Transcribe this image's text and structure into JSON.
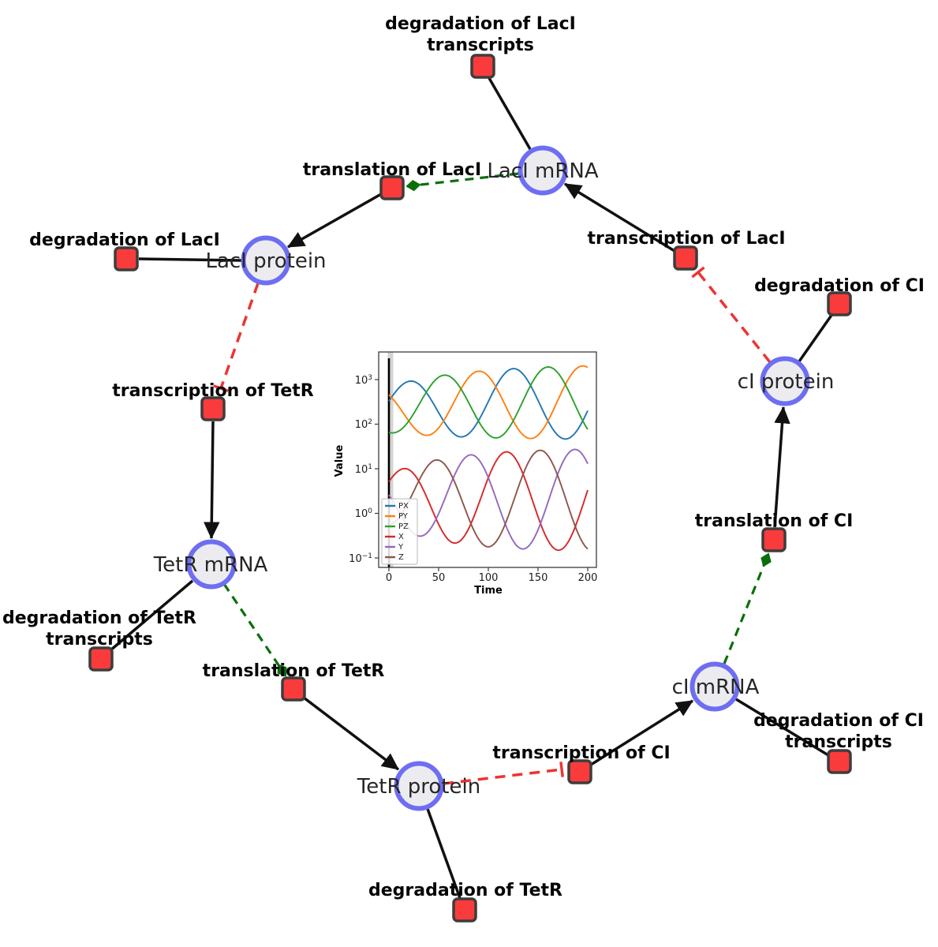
{
  "diagram": {
    "description": "Repressilator gene regulatory network: species (circles) and reactions (squares)",
    "style": {
      "species_fill": "#ececf0",
      "species_border": "#6e6ef2",
      "reaction_fill": "#fa3b3b",
      "reaction_border": "#3d3d3d",
      "edge_color": "#111111",
      "modifier_edge_color": "#0a6e0a",
      "inhibition_edge_color": "#ee3333"
    },
    "species": [
      {
        "id": "laci-mrna",
        "label": "LacI mRNA"
      },
      {
        "id": "laci-protein",
        "label": "LacI protein"
      },
      {
        "id": "tetr-mrna",
        "label": "TetR mRNA"
      },
      {
        "id": "tetr-protein",
        "label": "TetR protein"
      },
      {
        "id": "ci-mrna",
        "label": "cI mRNA"
      },
      {
        "id": "ci-protein",
        "label": "cI protein"
      }
    ],
    "reactions": [
      {
        "id": "deg-laci-transcripts",
        "label": "degradation of LacI",
        "label2": "transcripts"
      },
      {
        "id": "translation-laci",
        "label": "translation of LacI"
      },
      {
        "id": "deg-laci",
        "label": "degradation of LacI"
      },
      {
        "id": "transcription-tetr",
        "label": "transcription of TetR"
      },
      {
        "id": "deg-tetr-transcripts",
        "label": "degradation of TetR",
        "label2": "transcripts"
      },
      {
        "id": "translation-tetr",
        "label": "translation of TetR"
      },
      {
        "id": "deg-tetr",
        "label": "degradation of TetR"
      },
      {
        "id": "transcription-ci",
        "label": "transcription of CI"
      },
      {
        "id": "deg-ci-transcripts",
        "label": "degradation of CI",
        "label2": "transcripts"
      },
      {
        "id": "translation-ci",
        "label": "translation of CI"
      },
      {
        "id": "deg-ci",
        "label": "degradation of CI"
      },
      {
        "id": "transcription-laci",
        "label": "transcription of LacI"
      }
    ]
  },
  "chart_data": {
    "type": "line",
    "title": "",
    "xlabel": "Time",
    "ylabel": "Value",
    "x_axis": {
      "min": -10,
      "max": 208,
      "ticks": [
        0,
        50,
        100,
        150,
        200
      ]
    },
    "y_axis": {
      "scale": "log",
      "min": 0.07,
      "max": 3900,
      "ticks": [
        {
          "base": "10",
          "exp": "3"
        },
        {
          "base": "10",
          "exp": "2"
        },
        {
          "base": "10",
          "exp": "1"
        },
        {
          "base": "10",
          "exp": "0"
        },
        {
          "base": "10",
          "exp": "−1"
        }
      ]
    },
    "legend": {
      "location": "lower left",
      "entries": [
        "PX",
        "PY",
        "PZ",
        "X",
        "Y",
        "Z"
      ]
    },
    "grid": false,
    "event_line_x": 0,
    "period": 105,
    "series": [
      {
        "label": "PX",
        "color": "#1f77b4",
        "group": "protein",
        "peak_time": 125
      },
      {
        "label": "PY",
        "color": "#ff7f0e",
        "group": "protein",
        "peak_time": 195
      },
      {
        "label": "PZ",
        "color": "#2ca02c",
        "group": "protein",
        "peak_time": 160
      },
      {
        "label": "X",
        "color": "#d62728",
        "group": "mrna",
        "peak_time": 118
      },
      {
        "label": "Y",
        "color": "#9467bd",
        "group": "mrna",
        "peak_time": 187
      },
      {
        "label": "Z",
        "color": "#8c564b",
        "group": "mrna",
        "peak_time": 152
      }
    ],
    "groups": {
      "protein": {
        "log10_center": 2.5,
        "center_transient": 0.17,
        "log10_amp": 0.85,
        "amp_transient": 0.33,
        "tau": 80,
        "value_range": [
          60,
          2200
        ]
      },
      "mrna": {
        "log10_center": 0.3,
        "center_transient": 0.0,
        "log10_amp": 1.16,
        "amp_transient": 0.58,
        "tau": 60,
        "value_range": [
          0.13,
          28
        ]
      }
    }
  }
}
